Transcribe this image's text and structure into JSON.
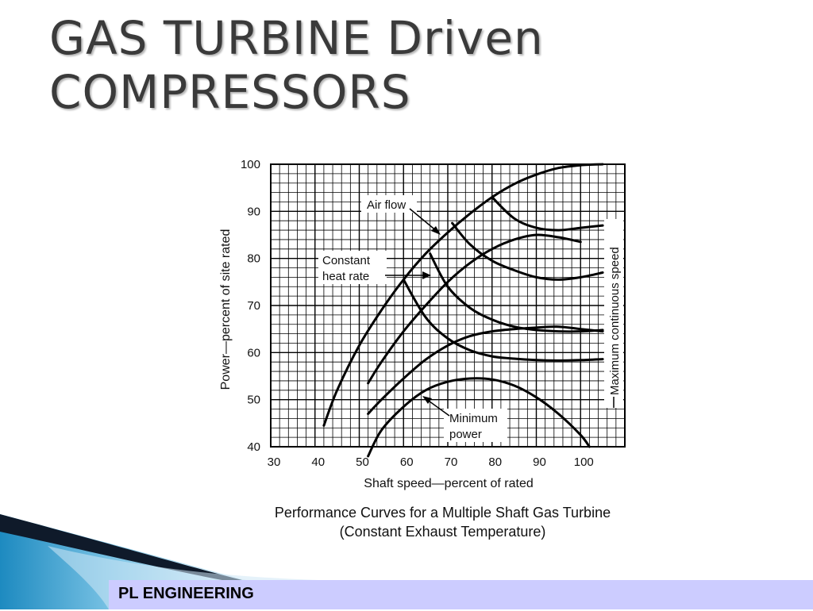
{
  "slide": {
    "title_line1": "GAS TURBINE Driven",
    "title_line2": "COMPRESSORS",
    "footer": "PL ENGINEERING"
  },
  "chart_data": {
    "type": "line",
    "title": "Performance Curves for a Multiple Shaft Gas Turbine",
    "subtitle": "(Constant Exhaust Temperature)",
    "xlabel": "Shaft speed—percent of rated",
    "ylabel": "Power—percent of site rated",
    "xlim": [
      30,
      110
    ],
    "ylim": [
      40,
      100
    ],
    "xticks": [
      "30",
      "40",
      "50",
      "60",
      "70",
      "80",
      "90",
      "100"
    ],
    "yticks": [
      "40",
      "50",
      "60",
      "70",
      "80",
      "90",
      "100"
    ],
    "grid": true,
    "annotations": {
      "air_flow": "Air flow",
      "constant_heat_rate_1": "Constant",
      "constant_heat_rate_2": "heat rate",
      "minimum_power_1": "Minimum",
      "minimum_power_2": "power",
      "max_speed": "Maximum continuous speed"
    },
    "series": [
      {
        "name": "Air flow",
        "points": [
          [
            42,
            44.5
          ],
          [
            45,
            52
          ],
          [
            50,
            61.5
          ],
          [
            55,
            69
          ],
          [
            60,
            75.5
          ],
          [
            65,
            81
          ],
          [
            70,
            85.5
          ],
          [
            75,
            89.5
          ],
          [
            80,
            93
          ],
          [
            85,
            95.8
          ],
          [
            90,
            97.8
          ],
          [
            95,
            99.2
          ],
          [
            100,
            99.8
          ],
          [
            105,
            100
          ]
        ]
      },
      {
        "points": [
          [
            52,
            53.5
          ],
          [
            55,
            58
          ],
          [
            60,
            64.5
          ],
          [
            65,
            70
          ],
          [
            70,
            75
          ],
          [
            75,
            79
          ],
          [
            80,
            82
          ],
          [
            85,
            84
          ],
          [
            90,
            85
          ],
          [
            95,
            84.5
          ],
          [
            100,
            83.5
          ]
        ]
      },
      {
        "points": [
          [
            52,
            47
          ],
          [
            55,
            50
          ],
          [
            60,
            54.5
          ],
          [
            65,
            58.5
          ],
          [
            70,
            61.5
          ],
          [
            75,
            63.5
          ],
          [
            80,
            64.5
          ],
          [
            85,
            65
          ],
          [
            90,
            65.3
          ],
          [
            95,
            65.5
          ],
          [
            100,
            65
          ],
          [
            105,
            64.5
          ]
        ]
      },
      {
        "points": [
          [
            52,
            38
          ],
          [
            55,
            43.5
          ],
          [
            60,
            48.5
          ],
          [
            65,
            52
          ],
          [
            70,
            53.8
          ],
          [
            75,
            54.5
          ],
          [
            80,
            54.3
          ],
          [
            85,
            53
          ],
          [
            90,
            50.5
          ],
          [
            95,
            47
          ],
          [
            100,
            42.5
          ],
          [
            102,
            40
          ]
        ]
      },
      {
        "points": [
          [
            80,
            93
          ],
          [
            85,
            88.5
          ],
          [
            90,
            86.5
          ],
          [
            95,
            86
          ],
          [
            100,
            86.5
          ],
          [
            105,
            87
          ]
        ]
      },
      {
        "points": [
          [
            71,
            87.5
          ],
          [
            75,
            83
          ],
          [
            80,
            79.5
          ],
          [
            85,
            77.5
          ],
          [
            90,
            76
          ],
          [
            95,
            75.5
          ],
          [
            100,
            76
          ],
          [
            105,
            77
          ]
        ]
      },
      {
        "points": [
          [
            66,
            81
          ],
          [
            70,
            74
          ],
          [
            75,
            69.5
          ],
          [
            80,
            67
          ],
          [
            85,
            65.5
          ],
          [
            90,
            64.8
          ],
          [
            95,
            64.5
          ],
          [
            100,
            64.5
          ],
          [
            105,
            64.8
          ]
        ]
      },
      {
        "points": [
          [
            60,
            75.5
          ],
          [
            65,
            67.5
          ],
          [
            70,
            63
          ],
          [
            75,
            60.5
          ],
          [
            80,
            59.2
          ],
          [
            85,
            58.7
          ],
          [
            90,
            58.4
          ],
          [
            95,
            58.3
          ],
          [
            100,
            58.4
          ],
          [
            105,
            58.6
          ]
        ]
      }
    ]
  }
}
